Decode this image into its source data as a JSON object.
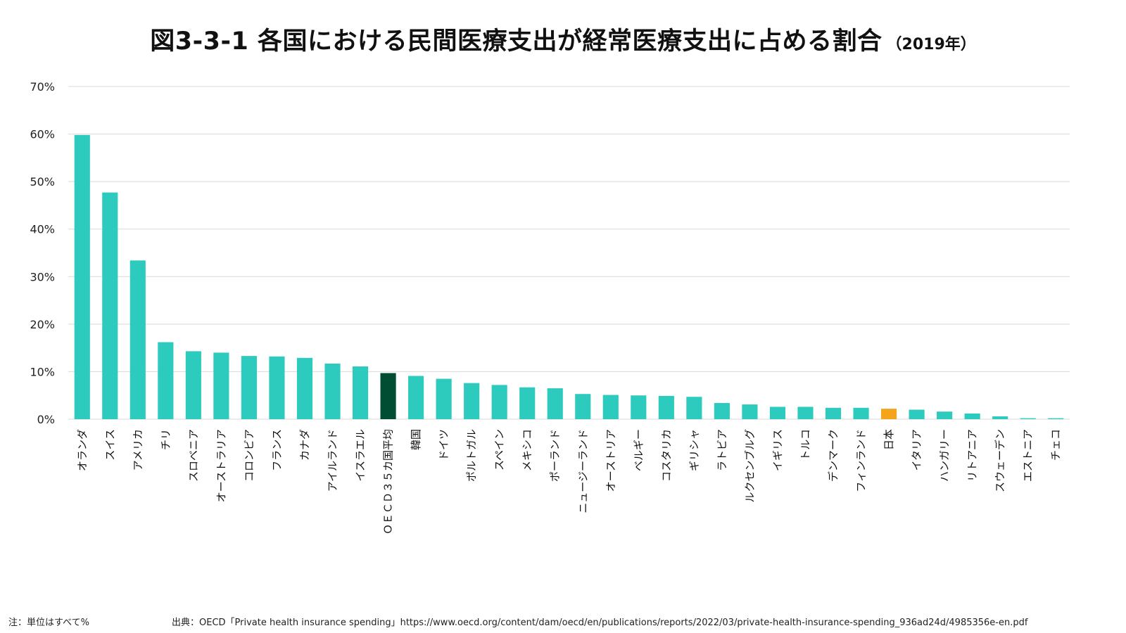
{
  "title": {
    "main": "図3-3-1 各国における民間医療支出が経常医療支出に占める割合",
    "sub": "（2019年）"
  },
  "footnotes": {
    "note": "注：単位はすべて%",
    "source": "出典：OECD「Private health insurance spending」https://www.oecd.org/content/dam/oecd/en/publications/reports/2022/03/private-health-insurance-spending_936ad24d/4985356e-en.pdf"
  },
  "colors": {
    "bar": "#2ccbbd",
    "oecd_average": "#004d33",
    "japan": "#f5a31a",
    "grid": "#d9d9d9"
  },
  "chart_data": {
    "type": "bar",
    "title": "図3-3-1 各国における民間医療支出が経常医療支出に占める割合（2019年）",
    "xlabel": "",
    "ylabel": "",
    "ylim": [
      0,
      70
    ],
    "yticks": [
      "0%",
      "10%",
      "20%",
      "30%",
      "40%",
      "50%",
      "60%",
      "70%"
    ],
    "grid": true,
    "categories": [
      "オランダ",
      "スイス",
      "アメリカ",
      "チリ",
      "スロベニア",
      "オーストラリア",
      "コロンビア",
      "フランス",
      "カナダ",
      "アイルランド",
      "イスラエル",
      "ＯＥＣＤ３５カ国平均",
      "韓国",
      "ドイツ",
      "ポルトガル",
      "スペイン",
      "メキシコ",
      "ポーランド",
      "ニュージーランド",
      "オーストリア",
      "ベルギー",
      "コスタリカ",
      "ギリシャ",
      "ラトビア",
      "ルクセンブルグ",
      "イギリス",
      "トルコ",
      "デンマーク",
      "フィンランド",
      "日本",
      "イタリア",
      "ハンガリー",
      "リトアニア",
      "スウェーデン",
      "エストニア",
      "チェコ"
    ],
    "values": [
      59.8,
      47.7,
      33.4,
      16.2,
      14.3,
      14.0,
      13.3,
      13.2,
      12.9,
      11.7,
      11.1,
      9.7,
      9.1,
      8.5,
      7.6,
      7.2,
      6.7,
      6.5,
      5.3,
      5.1,
      5.0,
      4.9,
      4.7,
      3.4,
      3.1,
      2.6,
      2.6,
      2.4,
      2.4,
      2.2,
      2.0,
      1.6,
      1.2,
      0.6,
      0.2,
      0.2
    ],
    "highlight": {
      "ＯＥＣＤ３５カ国平均": "oecd_average",
      "日本": "japan"
    }
  }
}
